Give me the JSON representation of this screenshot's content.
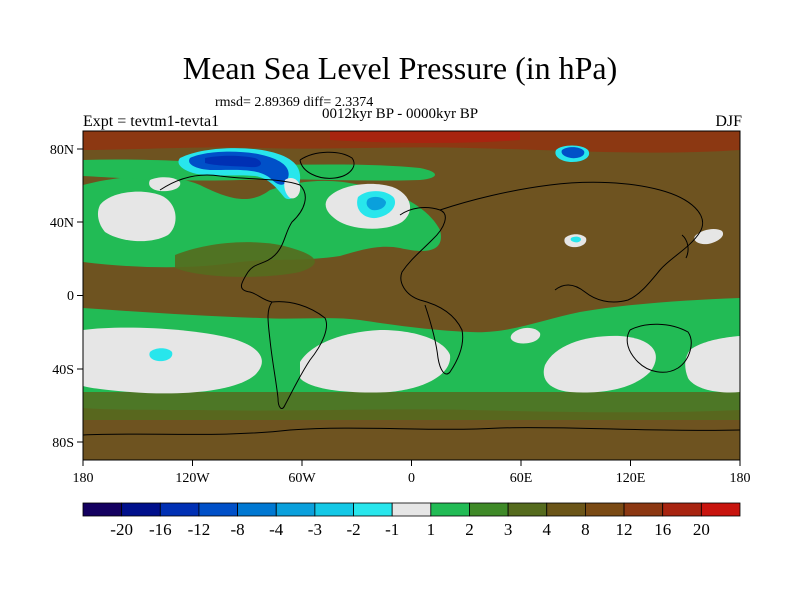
{
  "title": "Mean Sea Level Pressure (in hPa)",
  "stats": "rmsd= 2.89369 diff= 2.3374",
  "period": "0012kyr BP - 0000kyr BP",
  "experiment": "Expt = tevtm1-tevta1",
  "season": "DJF",
  "axes": {
    "x_ticks": [
      "180",
      "120W",
      "60W",
      "0",
      "60E",
      "120E",
      "180"
    ],
    "y_ticks": [
      "80N",
      "40N",
      "0",
      "40S",
      "80S"
    ]
  },
  "colorbar": {
    "labels": [
      "-20",
      "-16",
      "-12",
      "-8",
      "-4",
      "-3",
      "-2",
      "-1",
      "1",
      "2",
      "3",
      "4",
      "8",
      "12",
      "16",
      "20"
    ],
    "colors": [
      "#140060",
      "#00108c",
      "#0030b4",
      "#0050c8",
      "#0078d2",
      "#0aa0dc",
      "#14c8e6",
      "#28e6ec",
      "#e6e6e6",
      "#22bb55",
      "#3f8a28",
      "#556b1e",
      "#6b5518",
      "#7a4a14",
      "#8c3812",
      "#a82410",
      "#c8140e"
    ]
  },
  "colors": {
    "brown": "#6e5320",
    "green": "#22bb55",
    "white": "#e6e6e6",
    "olive": "#556b1e",
    "blue_light": "#28e6ec",
    "blue_dark": "#0050c8"
  }
}
